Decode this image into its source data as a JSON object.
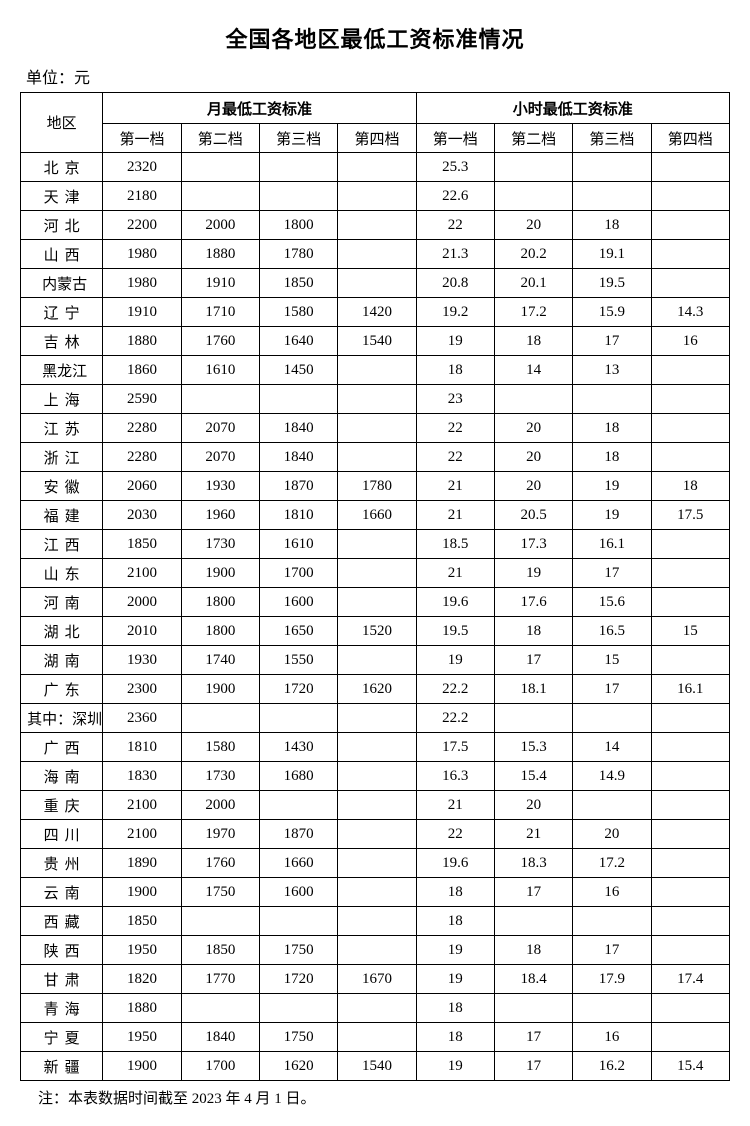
{
  "title": "全国各地区最低工资标准情况",
  "unit_label": "单位：元",
  "footnote": "注：本表数据时间截至 2023 年 4 月 1 日。",
  "headers": {
    "region": "地区",
    "monthly_group": "月最低工资标准",
    "hourly_group": "小时最低工资标准",
    "tier1": "第一档",
    "tier2": "第二档",
    "tier3": "第三档",
    "tier4": "第四档"
  },
  "style": {
    "background_color": "#ffffff",
    "text_color": "#000000",
    "border_color": "#000000",
    "title_fontsize": 22,
    "cell_fontsize": 15,
    "font_family": "SimSun"
  },
  "rows": [
    {
      "region": "北京",
      "spaced": true,
      "m1": "2320",
      "m2": "",
      "m3": "",
      "m4": "",
      "h1": "25.3",
      "h2": "",
      "h3": "",
      "h4": ""
    },
    {
      "region": "天津",
      "spaced": true,
      "m1": "2180",
      "m2": "",
      "m3": "",
      "m4": "",
      "h1": "22.6",
      "h2": "",
      "h3": "",
      "h4": ""
    },
    {
      "region": "河北",
      "spaced": true,
      "m1": "2200",
      "m2": "2000",
      "m3": "1800",
      "m4": "",
      "h1": "22",
      "h2": "20",
      "h3": "18",
      "h4": ""
    },
    {
      "region": "山西",
      "spaced": true,
      "m1": "1980",
      "m2": "1880",
      "m3": "1780",
      "m4": "",
      "h1": "21.3",
      "h2": "20.2",
      "h3": "19.1",
      "h4": ""
    },
    {
      "region": "内蒙古",
      "spaced": false,
      "m1": "1980",
      "m2": "1910",
      "m3": "1850",
      "m4": "",
      "h1": "20.8",
      "h2": "20.1",
      "h3": "19.5",
      "h4": ""
    },
    {
      "region": "辽宁",
      "spaced": true,
      "m1": "1910",
      "m2": "1710",
      "m3": "1580",
      "m4": "1420",
      "h1": "19.2",
      "h2": "17.2",
      "h3": "15.9",
      "h4": "14.3"
    },
    {
      "region": "吉林",
      "spaced": true,
      "m1": "1880",
      "m2": "1760",
      "m3": "1640",
      "m4": "1540",
      "h1": "19",
      "h2": "18",
      "h3": "17",
      "h4": "16"
    },
    {
      "region": "黑龙江",
      "spaced": false,
      "m1": "1860",
      "m2": "1610",
      "m3": "1450",
      "m4": "",
      "h1": "18",
      "h2": "14",
      "h3": "13",
      "h4": ""
    },
    {
      "region": "上海",
      "spaced": true,
      "m1": "2590",
      "m2": "",
      "m3": "",
      "m4": "",
      "h1": "23",
      "h2": "",
      "h3": "",
      "h4": ""
    },
    {
      "region": "江苏",
      "spaced": true,
      "m1": "2280",
      "m2": "2070",
      "m3": "1840",
      "m4": "",
      "h1": "22",
      "h2": "20",
      "h3": "18",
      "h4": ""
    },
    {
      "region": "浙江",
      "spaced": true,
      "m1": "2280",
      "m2": "2070",
      "m3": "1840",
      "m4": "",
      "h1": "22",
      "h2": "20",
      "h3": "18",
      "h4": ""
    },
    {
      "region": "安徽",
      "spaced": true,
      "m1": "2060",
      "m2": "1930",
      "m3": "1870",
      "m4": "1780",
      "h1": "21",
      "h2": "20",
      "h3": "19",
      "h4": "18"
    },
    {
      "region": "福建",
      "spaced": true,
      "m1": "2030",
      "m2": "1960",
      "m3": "1810",
      "m4": "1660",
      "h1": "21",
      "h2": "20.5",
      "h3": "19",
      "h4": "17.5"
    },
    {
      "region": "江西",
      "spaced": true,
      "m1": "1850",
      "m2": "1730",
      "m3": "1610",
      "m4": "",
      "h1": "18.5",
      "h2": "17.3",
      "h3": "16.1",
      "h4": ""
    },
    {
      "region": "山东",
      "spaced": true,
      "m1": "2100",
      "m2": "1900",
      "m3": "1700",
      "m4": "",
      "h1": "21",
      "h2": "19",
      "h3": "17",
      "h4": ""
    },
    {
      "region": "河南",
      "spaced": true,
      "m1": "2000",
      "m2": "1800",
      "m3": "1600",
      "m4": "",
      "h1": "19.6",
      "h2": "17.6",
      "h3": "15.6",
      "h4": ""
    },
    {
      "region": "湖北",
      "spaced": true,
      "m1": "2010",
      "m2": "1800",
      "m3": "1650",
      "m4": "1520",
      "h1": "19.5",
      "h2": "18",
      "h3": "16.5",
      "h4": "15"
    },
    {
      "region": "湖南",
      "spaced": true,
      "m1": "1930",
      "m2": "1740",
      "m3": "1550",
      "m4": "",
      "h1": "19",
      "h2": "17",
      "h3": "15",
      "h4": ""
    },
    {
      "region": "广东",
      "spaced": true,
      "m1": "2300",
      "m2": "1900",
      "m3": "1720",
      "m4": "1620",
      "h1": "22.2",
      "h2": "18.1",
      "h3": "17",
      "h4": "16.1"
    },
    {
      "region": "其中：深圳",
      "spaced": false,
      "m1": "2360",
      "m2": "",
      "m3": "",
      "m4": "",
      "h1": "22.2",
      "h2": "",
      "h3": "",
      "h4": ""
    },
    {
      "region": "广西",
      "spaced": true,
      "m1": "1810",
      "m2": "1580",
      "m3": "1430",
      "m4": "",
      "h1": "17.5",
      "h2": "15.3",
      "h3": "14",
      "h4": ""
    },
    {
      "region": "海南",
      "spaced": true,
      "m1": "1830",
      "m2": "1730",
      "m3": "1680",
      "m4": "",
      "h1": "16.3",
      "h2": "15.4",
      "h3": "14.9",
      "h4": ""
    },
    {
      "region": "重庆",
      "spaced": true,
      "m1": "2100",
      "m2": "2000",
      "m3": "",
      "m4": "",
      "h1": "21",
      "h2": "20",
      "h3": "",
      "h4": ""
    },
    {
      "region": "四川",
      "spaced": true,
      "m1": "2100",
      "m2": "1970",
      "m3": "1870",
      "m4": "",
      "h1": "22",
      "h2": "21",
      "h3": "20",
      "h4": ""
    },
    {
      "region": "贵州",
      "spaced": true,
      "m1": "1890",
      "m2": "1760",
      "m3": "1660",
      "m4": "",
      "h1": "19.6",
      "h2": "18.3",
      "h3": "17.2",
      "h4": ""
    },
    {
      "region": "云南",
      "spaced": true,
      "m1": "1900",
      "m2": "1750",
      "m3": "1600",
      "m4": "",
      "h1": "18",
      "h2": "17",
      "h3": "16",
      "h4": ""
    },
    {
      "region": "西藏",
      "spaced": true,
      "m1": "1850",
      "m2": "",
      "m3": "",
      "m4": "",
      "h1": "18",
      "h2": "",
      "h3": "",
      "h4": ""
    },
    {
      "region": "陕西",
      "spaced": true,
      "m1": "1950",
      "m2": "1850",
      "m3": "1750",
      "m4": "",
      "h1": "19",
      "h2": "18",
      "h3": "17",
      "h4": ""
    },
    {
      "region": "甘肃",
      "spaced": true,
      "m1": "1820",
      "m2": "1770",
      "m3": "1720",
      "m4": "1670",
      "h1": "19",
      "h2": "18.4",
      "h3": "17.9",
      "h4": "17.4"
    },
    {
      "region": "青海",
      "spaced": true,
      "m1": "1880",
      "m2": "",
      "m3": "",
      "m4": "",
      "h1": "18",
      "h2": "",
      "h3": "",
      "h4": ""
    },
    {
      "region": "宁夏",
      "spaced": true,
      "m1": "1950",
      "m2": "1840",
      "m3": "1750",
      "m4": "",
      "h1": "18",
      "h2": "17",
      "h3": "16",
      "h4": ""
    },
    {
      "region": "新疆",
      "spaced": true,
      "m1": "1900",
      "m2": "1700",
      "m3": "1620",
      "m4": "1540",
      "h1": "19",
      "h2": "17",
      "h3": "16.2",
      "h4": "15.4"
    }
  ]
}
